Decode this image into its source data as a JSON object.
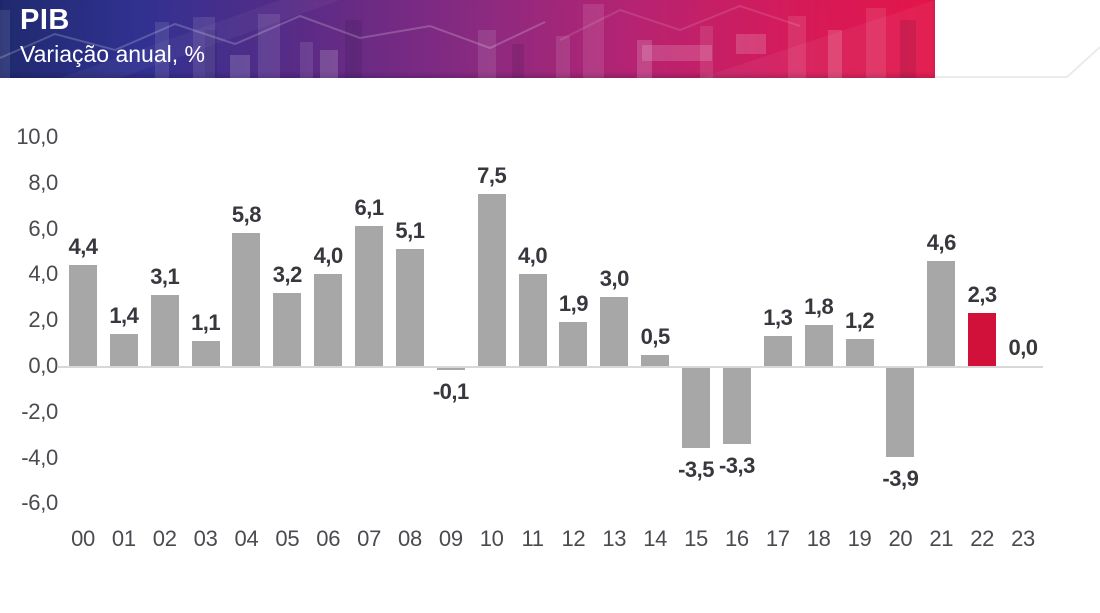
{
  "header": {
    "title": "PIB",
    "subtitle": "Variação anual, %"
  },
  "chart_data": {
    "type": "bar",
    "title": "PIB",
    "subtitle": "Variação anual, %",
    "categories": [
      "00",
      "01",
      "02",
      "03",
      "04",
      "05",
      "06",
      "07",
      "08",
      "09",
      "10",
      "11",
      "12",
      "13",
      "14",
      "15",
      "16",
      "17",
      "18",
      "19",
      "20",
      "21",
      "22",
      "23"
    ],
    "values": [
      4.4,
      1.4,
      3.1,
      1.1,
      5.8,
      3.2,
      4.0,
      6.1,
      5.1,
      -0.1,
      7.5,
      4.0,
      1.9,
      3.0,
      0.5,
      -3.5,
      -3.3,
      1.3,
      1.8,
      1.2,
      -3.9,
      4.6,
      2.3,
      0.0
    ],
    "value_labels": [
      "4,4",
      "1,4",
      "3,1",
      "1,1",
      "5,8",
      "3,2",
      "4,0",
      "6,1",
      "5,1",
      "-0,1",
      "7,5",
      "4,0",
      "1,9",
      "3,0",
      "0,5",
      "-3,5",
      "-3,3",
      "1,3",
      "1,8",
      "1,2",
      "-3,9",
      "4,6",
      "2,3",
      "0,0"
    ],
    "y_ticks": [
      "10,0",
      "8,0",
      "6,0",
      "4,0",
      "2,0",
      "0,0",
      "-2,0",
      "-4,0",
      "-6,0"
    ],
    "y_tick_values": [
      10,
      8,
      6,
      4,
      2,
      0,
      -2,
      -4,
      -6
    ],
    "ylim": [
      -6,
      10
    ],
    "grid": false,
    "legend": "none",
    "bar_color": "#a7a7a7",
    "highlight_color": "#d1113a",
    "highlight_index": 22,
    "highlight_category": "22",
    "decimal_separator": ","
  },
  "colors": {
    "banner_gradient_start": "#1f2a6e",
    "banner_gradient_mid": "#8c2a80",
    "banner_gradient_end": "#e31548",
    "axis_label": "#4a4a50",
    "value_label": "#37373d",
    "baseline": "#d8d8d8"
  }
}
